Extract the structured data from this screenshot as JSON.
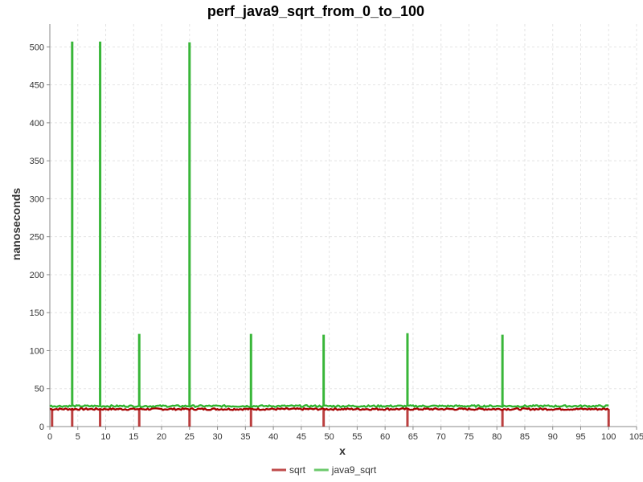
{
  "chart_data": {
    "type": "line",
    "title": "perf_java9_sqrt_from_0_to_100",
    "xlabel": "x",
    "ylabel": "nanoseconds",
    "xlim": [
      0,
      105
    ],
    "ylim": [
      0,
      530
    ],
    "x_ticks": [
      0,
      5,
      10,
      15,
      20,
      25,
      30,
      35,
      40,
      45,
      50,
      55,
      60,
      65,
      70,
      75,
      80,
      85,
      90,
      95,
      100,
      105
    ],
    "y_ticks": [
      0,
      50,
      100,
      150,
      200,
      250,
      300,
      350,
      400,
      450,
      500
    ],
    "grid": true,
    "legend_position": "bottom-center",
    "series": [
      {
        "name": "sqrt",
        "color": "#a50000",
        "baseline": 23,
        "x_range": [
          0,
          100
        ],
        "spikes_down": [
          {
            "x": 0.4,
            "y": 0
          },
          {
            "x": 4,
            "y": 0
          },
          {
            "x": 9,
            "y": 0
          },
          {
            "x": 16,
            "y": 0
          },
          {
            "x": 25,
            "y": 0
          },
          {
            "x": 36,
            "y": 0
          },
          {
            "x": 49,
            "y": 0
          },
          {
            "x": 64,
            "y": 0
          },
          {
            "x": 81,
            "y": 0
          },
          {
            "x": 100,
            "y": 0
          }
        ]
      },
      {
        "name": "java9_sqrt",
        "color": "#2fb32f",
        "baseline": 27,
        "x_range": [
          0,
          100
        ],
        "spikes_up": [
          {
            "x": 4,
            "y": 507
          },
          {
            "x": 9,
            "y": 507
          },
          {
            "x": 16,
            "y": 122
          },
          {
            "x": 25,
            "y": 506
          },
          {
            "x": 36,
            "y": 122
          },
          {
            "x": 49,
            "y": 121
          },
          {
            "x": 64,
            "y": 123
          },
          {
            "x": 81,
            "y": 121
          }
        ]
      }
    ]
  }
}
